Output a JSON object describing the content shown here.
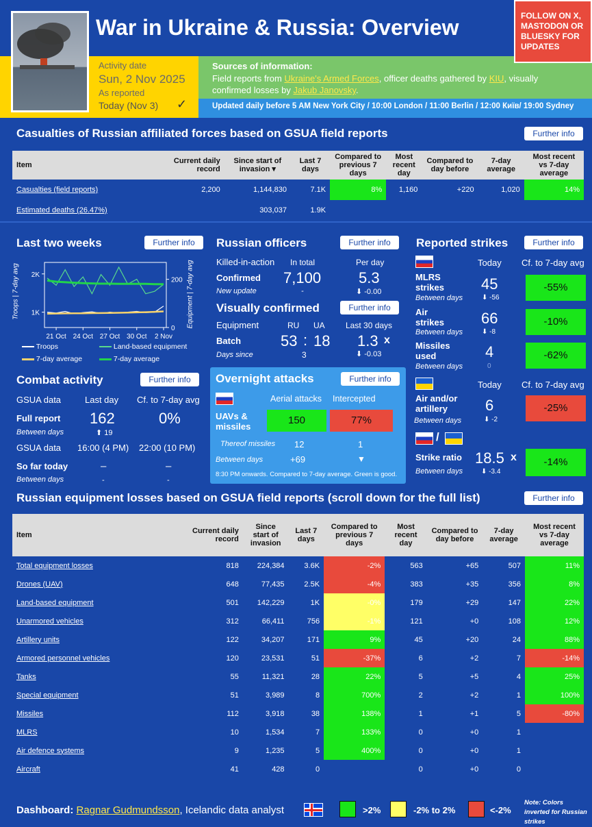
{
  "header": {
    "title": "War in Ukraine & Russia: Overview",
    "follow": "FOLLOW ON X, MASTODON OR BLUESKY FOR UPDATES",
    "activity_label": "Activity date",
    "activity_date": "Sun, 2 Nov 2025",
    "as_reported_label": "As reported",
    "as_reported_value": "Today (Nov 3)",
    "check": "✓",
    "sources_title": "Sources of information:",
    "src_a": "Field reports from ",
    "src_link1": "Ukraine's Armed Forces",
    "src_b": ", officer deaths gathered by ",
    "src_link2": "KIU",
    "src_c": ", visually confirmed losses by ",
    "src_link3": "Jakub Janovsky",
    "src_d": ".",
    "updated": "Updated daily before 5 AM New York City / 10:00 London / 11:00 Berlin / 12:00 Київ/ 19:00 Sydney"
  },
  "further": "Further info",
  "casualties": {
    "title": "Casualties of Russian affiliated forces based on GSUA field reports",
    "headers": [
      "Item",
      "Current daily record",
      "Since start of invasion",
      "Last 7 days",
      "Compared to previous 7 days",
      "Most recent day",
      "Compared to day before",
      "7-day average",
      "Most recent vs 7-day average"
    ],
    "sort": "▾",
    "rows": [
      [
        "Casualties (field reports)",
        "2,200",
        "1,144,830",
        "7.1K",
        "8%",
        "1,160",
        "+220",
        "1,020",
        "14%"
      ],
      [
        "Estimated deaths (26.47%)",
        "",
        "303,037",
        "1.9K",
        "",
        "",
        "",
        "",
        ""
      ]
    ]
  },
  "last_two_weeks": {
    "title": "Last two weeks",
    "y_left_label": "Troops | 7-day avg",
    "y_right_label": "Equipment | 7-day avg",
    "y_left_ticks": [
      "2K",
      "1K"
    ],
    "y_right_ticks": [
      "200",
      "0"
    ],
    "x_ticks": [
      "21 Oct",
      "24 Oct",
      "27 Oct",
      "30 Oct",
      "2 Nov"
    ],
    "legend": [
      "Troops",
      "Land-based equipment",
      "7-day average",
      "7-day average"
    ]
  },
  "chart_data": {
    "type": "line",
    "x": [
      "20 Oct",
      "21 Oct",
      "22 Oct",
      "23 Oct",
      "24 Oct",
      "25 Oct",
      "26 Oct",
      "27 Oct",
      "28 Oct",
      "29 Oct",
      "30 Oct",
      "31 Oct",
      "1 Nov",
      "2 Nov"
    ],
    "series": [
      {
        "name": "Troops",
        "values": [
          1000,
          980,
          1020,
          960,
          990,
          1010,
          970,
          1000,
          980,
          1000,
          1020,
          990,
          1000,
          1160
        ]
      },
      {
        "name": "Land-based equipment",
        "values": [
          205,
          175,
          240,
          170,
          210,
          140,
          220,
          175,
          250,
          180,
          200,
          140,
          150,
          179
        ]
      },
      {
        "name": "7-day average",
        "values": [
          960,
          965,
          968,
          970,
          972,
          975,
          978,
          980,
          985,
          988,
          995,
          1000,
          1010,
          1020
        ]
      },
      {
        "name": "7-day average",
        "values": [
          195,
          190,
          188,
          186,
          184,
          183,
          182,
          182,
          181,
          181,
          181,
          181,
          180,
          180
        ]
      }
    ],
    "colors": {
      "troops": "#ffffff",
      "equipment": "#59d98c",
      "troops_avg": "#f7d26b",
      "equipment_avg": "#22d44a"
    }
  },
  "officers": {
    "title": "Russian officers",
    "kia": "Killed-in-action",
    "in_total": "In total",
    "per_day": "Per day",
    "confirmed": "Confirmed",
    "total": "7,100",
    "perday": "5.3",
    "new_update": "New update",
    "dash": "-",
    "delta": "⬇ -0.00"
  },
  "visual": {
    "title": "Visually confirmed",
    "equipment": "Equipment",
    "ru": "RU",
    "ua": "UA",
    "last30": "Last 30 days",
    "batch": "Batch",
    "ru_val": "53",
    "colon": ":",
    "ua_val": "18",
    "ratio": "1.3",
    "x": "x",
    "days_since": "Days since",
    "days_val": "3",
    "ratio_delta": "⬇ -0.03"
  },
  "combat": {
    "title": "Combat activity",
    "gsua": "GSUA data",
    "last_day": "Last day",
    "cf": "Cf. to 7-day avg",
    "full_report": "Full report",
    "full_val": "162",
    "full_cf": "0%",
    "between": "Between days",
    "full_delta": "⬆ 19",
    "gsua2": "GSUA data",
    "t1": "16:00 (4 PM)",
    "t2": "22:00 (10 PM)",
    "so_far": "So far today",
    "dash": "–",
    "dash_small": "-"
  },
  "overnight": {
    "title": "Overnight attacks",
    "aerial": "Aerial attacks",
    "intercepted": "Intercepted",
    "uavs": "UAVs & missiles",
    "aerial_val": "150",
    "intercepted_val": "77%",
    "thereof": "Thereof missiles",
    "missiles_val": "12",
    "missiles_int": "1",
    "between": "Between days",
    "between_val": "+69",
    "between_int": "▼",
    "note": "8:30 PM onwards. Compared to 7-day average. Green is good."
  },
  "strikes": {
    "title": "Reported strikes",
    "today": "Today",
    "cf": "Cf. to 7-day avg",
    "items": [
      {
        "label": "MLRS strikes",
        "value": "45",
        "between": "Between days",
        "delta": "⬇ -56",
        "cf": "-55%"
      },
      {
        "label": "Air strikes",
        "value": "66",
        "between": "Between days",
        "delta": "⬇ -8",
        "cf": "-10%"
      },
      {
        "label": "Missiles used",
        "value": "4",
        "between": "Between days",
        "delta": "0",
        "cf": "-62%"
      }
    ],
    "ua_today": "Today",
    "ua_cf": "Cf. to 7-day avg",
    "ua_label": "Air and/or artillery",
    "ua_value": "6",
    "ua_between": "Between days",
    "ua_delta": "⬇ -2",
    "ua_cf_val": "-25%",
    "slash": "/",
    "ratio_label": "Strike ratio",
    "ratio_val": "18.5",
    "ratio_x": "x",
    "ratio_between": "Between days",
    "ratio_delta": "⬇ -3.4",
    "ratio_cf": "-14%"
  },
  "equipment": {
    "title": "Russian equipment losses based on GSUA field reports (scroll down for the full list)",
    "headers": [
      "Item",
      "Current daily record",
      "Since start of invasion",
      "Last 7 days",
      "Compared to previous 7 days",
      "Most recent day",
      "Compared to day before",
      "7-day average",
      "Most recent vs 7-day average"
    ],
    "rows": [
      [
        "Total equipment losses",
        "818",
        "224,384",
        "3.6K",
        "-2%",
        "563",
        "+65",
        "507",
        "11%"
      ],
      [
        "Drones (UAV)",
        "648",
        "77,435",
        "2.5K",
        "-4%",
        "383",
        "+35",
        "356",
        "8%"
      ],
      [
        "Land-based equipment",
        "501",
        "142,229",
        "1K",
        "-0%",
        "179",
        "+29",
        "147",
        "22%"
      ],
      [
        "Unarmored vehicles",
        "312",
        "66,411",
        "756",
        "-1%",
        "121",
        "+0",
        "108",
        "12%"
      ],
      [
        "Artillery units",
        "122",
        "34,207",
        "171",
        "9%",
        "45",
        "+20",
        "24",
        "88%"
      ],
      [
        "Armored personnel vehicles",
        "120",
        "23,531",
        "51",
        "-37%",
        "6",
        "+2",
        "7",
        "-14%"
      ],
      [
        "Tanks",
        "55",
        "11,321",
        "28",
        "22%",
        "5",
        "+5",
        "4",
        "25%"
      ],
      [
        "Special equipment",
        "51",
        "3,989",
        "8",
        "700%",
        "2",
        "+2",
        "1",
        "100%"
      ],
      [
        "Missiles",
        "112",
        "3,918",
        "38",
        "138%",
        "1",
        "+1",
        "5",
        "-80%"
      ],
      [
        "MLRS",
        "10",
        "1,534",
        "7",
        "133%",
        "0",
        "+0",
        "1",
        ""
      ],
      [
        "Air defence systems",
        "9",
        "1,235",
        "5",
        "400%",
        "0",
        "+0",
        "1",
        ""
      ],
      [
        "Aircraft",
        "41",
        "428",
        "0",
        "",
        "0",
        "+0",
        "0",
        ""
      ]
    ],
    "c5": [
      "rd",
      "rd",
      "y",
      "y",
      "g",
      "rd",
      "g",
      "g",
      "g",
      "g",
      "g",
      ""
    ],
    "c7": [
      "gt",
      "gt",
      "gt",
      "",
      "gt",
      "gt",
      "gt",
      "gt",
      "gt",
      "",
      "",
      ""
    ],
    "c9": [
      "g",
      "g",
      "g",
      "g",
      "g",
      "rd",
      "g",
      "g",
      "rd",
      "",
      "",
      ""
    ]
  },
  "footer": {
    "label": "Dashboard: ",
    "author": "Ragnar Gudmundsson",
    "desc": ", Icelandic data analyst",
    "l1": ">2%",
    "l2": "-2% to 2%",
    "l3": "<-2%",
    "note": "Note: Colors inverted for Russian strikes"
  }
}
